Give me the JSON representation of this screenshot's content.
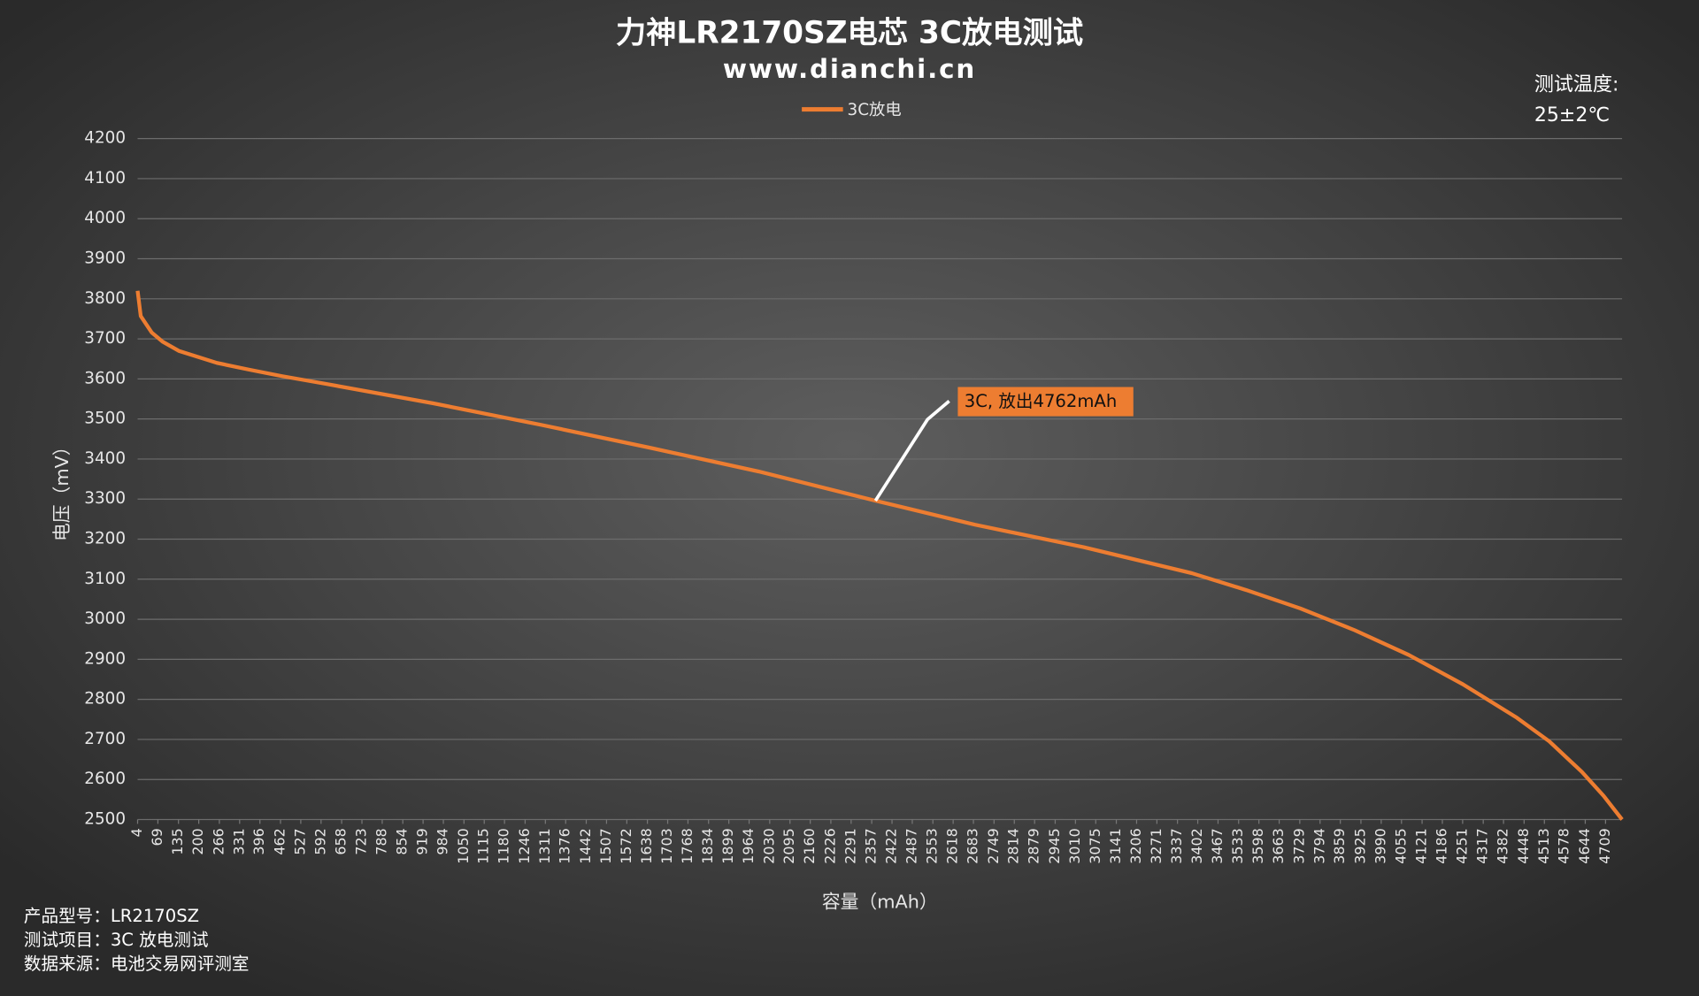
{
  "chart_data": {
    "type": "line",
    "title": "力神LR2170SZ电芯 3C放电测试",
    "subtitle": "www.dianchi.cn",
    "temperature_note": [
      "测试温度:",
      "25±2℃"
    ],
    "y_label": "电压（mV）",
    "x_label": "容量（mAh）",
    "notes": [
      "产品型号：LR2170SZ",
      "测试项目：3C 放电测试",
      "数据来源：电池交易网评测室"
    ],
    "annotation": "3C, 放出4762mAh",
    "annotation_color": "#ed7d31",
    "legend": "top",
    "grid": true,
    "x": [
      4,
      14,
      49,
      84,
      136,
      258,
      362,
      466,
      605,
      952,
      1299,
      1647,
      1994,
      2369,
      2688,
      3036,
      3383,
      3557,
      3731,
      3904,
      4078,
      4251,
      4425,
      4529,
      4633,
      4703,
      4762
    ],
    "series": [
      {
        "name": "3C放电",
        "color": "#ed7d31",
        "values": [
          3820,
          3757,
          3716,
          3693,
          3670,
          3640,
          3623,
          3607,
          3588,
          3539,
          3485,
          3428,
          3369,
          3296,
          3236,
          3180,
          3115,
          3073,
          3027,
          2973,
          2911,
          2838,
          2754,
          2695,
          2619,
          2559,
          2500
        ]
      }
    ],
    "xlim": [
      4,
      4762
    ],
    "xticks": [
      4,
      69,
      135,
      200,
      266,
      331,
      396,
      462,
      527,
      592,
      658,
      723,
      788,
      854,
      919,
      984,
      1050,
      1115,
      1180,
      1246,
      1311,
      1376,
      1442,
      1507,
      1572,
      1638,
      1703,
      1768,
      1834,
      1899,
      1964,
      2030,
      2095,
      2160,
      2226,
      2291,
      2357,
      2422,
      2487,
      2553,
      2618,
      2683,
      2749,
      2814,
      2879,
      2945,
      3010,
      3075,
      3141,
      3206,
      3271,
      3337,
      3402,
      3467,
      3533,
      3598,
      3663,
      3729,
      3794,
      3859,
      3925,
      3990,
      4055,
      4121,
      4186,
      4251,
      4317,
      4382,
      4448,
      4513,
      4578,
      4644,
      4709
    ],
    "ylim": [
      2500,
      4200
    ],
    "yticks": [
      2500,
      2600,
      2700,
      2800,
      2900,
      3000,
      3100,
      3200,
      3300,
      3400,
      3500,
      3600,
      3700,
      3800,
      3900,
      4000,
      4100,
      4200
    ]
  }
}
